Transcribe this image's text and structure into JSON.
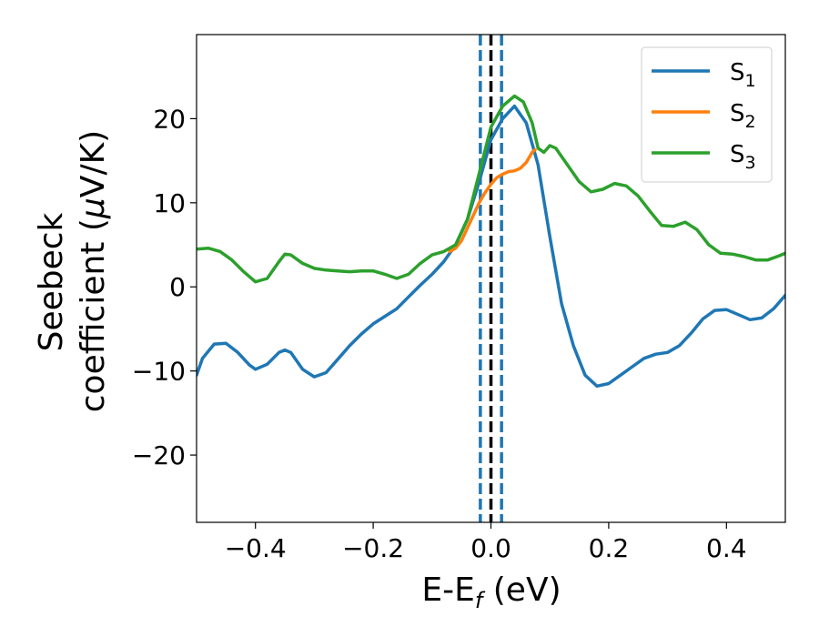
{
  "chart_data": {
    "type": "line",
    "title": "",
    "xlabel": {
      "main": "E-E",
      "sub": "f",
      "unit": " (eV)"
    },
    "ylabel": {
      "line1": "Seebeck",
      "line2": "coefficient  (",
      "mu": "μ",
      "unit": "V/K)"
    },
    "xlim": [
      -0.5,
      0.5
    ],
    "ylim": [
      -28,
      30
    ],
    "xticks": [
      -0.4,
      -0.2,
      0.0,
      0.2,
      0.4
    ],
    "xtick_labels": [
      "−0.4",
      "−0.2",
      "0.0",
      "0.2",
      "0.4"
    ],
    "yticks": [
      -20,
      -10,
      0,
      10,
      20
    ],
    "ytick_labels": [
      "−20",
      "−10",
      "0",
      "10",
      "20"
    ],
    "grid": false,
    "legend_position": "top-right",
    "vlines": [
      {
        "x": -0.018,
        "style": "dashed",
        "color": "#1f77b4"
      },
      {
        "x": 0.018,
        "style": "dashed",
        "color": "#1f77b4"
      },
      {
        "x": 0.0,
        "style": "dashed",
        "color": "#000000"
      }
    ],
    "series": [
      {
        "name": "S",
        "sub": "1",
        "color": "#1f77b4",
        "points": [
          [
            -0.5,
            -10.5
          ],
          [
            -0.49,
            -8.5
          ],
          [
            -0.47,
            -6.8
          ],
          [
            -0.45,
            -6.7
          ],
          [
            -0.43,
            -7.8
          ],
          [
            -0.41,
            -9.3
          ],
          [
            -0.4,
            -9.8
          ],
          [
            -0.38,
            -9.2
          ],
          [
            -0.36,
            -7.8
          ],
          [
            -0.35,
            -7.5
          ],
          [
            -0.34,
            -7.8
          ],
          [
            -0.32,
            -9.8
          ],
          [
            -0.3,
            -10.7
          ],
          [
            -0.28,
            -10.2
          ],
          [
            -0.26,
            -8.6
          ],
          [
            -0.24,
            -7.0
          ],
          [
            -0.22,
            -5.6
          ],
          [
            -0.2,
            -4.4
          ],
          [
            -0.18,
            -3.5
          ],
          [
            -0.16,
            -2.6
          ],
          [
            -0.14,
            -1.2
          ],
          [
            -0.12,
            0.2
          ],
          [
            -0.1,
            1.5
          ],
          [
            -0.08,
            3.0
          ],
          [
            -0.06,
            5.0
          ],
          [
            -0.04,
            8.0
          ],
          [
            -0.02,
            12.5
          ],
          [
            0.0,
            17.5
          ],
          [
            0.02,
            20.0
          ],
          [
            0.04,
            21.5
          ],
          [
            0.06,
            19.5
          ],
          [
            0.08,
            14.5
          ],
          [
            0.1,
            6.0
          ],
          [
            0.12,
            -2.0
          ],
          [
            0.14,
            -7.0
          ],
          [
            0.16,
            -10.5
          ],
          [
            0.18,
            -11.8
          ],
          [
            0.2,
            -11.5
          ],
          [
            0.22,
            -10.5
          ],
          [
            0.24,
            -9.5
          ],
          [
            0.26,
            -8.5
          ],
          [
            0.28,
            -8.0
          ],
          [
            0.3,
            -7.8
          ],
          [
            0.32,
            -7.0
          ],
          [
            0.34,
            -5.5
          ],
          [
            0.36,
            -3.8
          ],
          [
            0.38,
            -2.8
          ],
          [
            0.4,
            -2.7
          ],
          [
            0.42,
            -3.3
          ],
          [
            0.44,
            -3.9
          ],
          [
            0.46,
            -3.7
          ],
          [
            0.48,
            -2.6
          ],
          [
            0.5,
            -1.0
          ]
        ]
      },
      {
        "name": "S",
        "sub": "2",
        "color": "#ff7f0e",
        "points": [
          [
            -0.07,
            4.2
          ],
          [
            -0.06,
            4.6
          ],
          [
            -0.05,
            5.5
          ],
          [
            -0.04,
            7.0
          ],
          [
            -0.03,
            8.5
          ],
          [
            -0.02,
            10.0
          ],
          [
            -0.01,
            11.2
          ],
          [
            0.0,
            12.2
          ],
          [
            0.01,
            13.0
          ],
          [
            0.02,
            13.4
          ],
          [
            0.03,
            13.7
          ],
          [
            0.04,
            13.8
          ],
          [
            0.05,
            14.1
          ],
          [
            0.06,
            14.8
          ],
          [
            0.07,
            16.0
          ],
          [
            0.075,
            16.3
          ]
        ]
      },
      {
        "name": "S",
        "sub": "3",
        "color": "#2ca02c",
        "points": [
          [
            -0.5,
            4.5
          ],
          [
            -0.48,
            4.6
          ],
          [
            -0.46,
            4.2
          ],
          [
            -0.44,
            3.2
          ],
          [
            -0.42,
            1.8
          ],
          [
            -0.4,
            0.6
          ],
          [
            -0.38,
            1.0
          ],
          [
            -0.36,
            3.0
          ],
          [
            -0.35,
            3.9
          ],
          [
            -0.34,
            3.8
          ],
          [
            -0.32,
            2.8
          ],
          [
            -0.3,
            2.2
          ],
          [
            -0.28,
            2.0
          ],
          [
            -0.26,
            1.9
          ],
          [
            -0.24,
            1.8
          ],
          [
            -0.22,
            1.9
          ],
          [
            -0.2,
            1.9
          ],
          [
            -0.18,
            1.5
          ],
          [
            -0.16,
            1.0
          ],
          [
            -0.14,
            1.5
          ],
          [
            -0.12,
            2.8
          ],
          [
            -0.1,
            3.8
          ],
          [
            -0.08,
            4.2
          ],
          [
            -0.06,
            5.0
          ],
          [
            -0.04,
            8.0
          ],
          [
            -0.02,
            13.5
          ],
          [
            0.0,
            19.0
          ],
          [
            0.02,
            21.5
          ],
          [
            0.04,
            22.7
          ],
          [
            0.055,
            22.0
          ],
          [
            0.07,
            19.5
          ],
          [
            0.08,
            16.5
          ],
          [
            0.09,
            16.0
          ],
          [
            0.1,
            16.8
          ],
          [
            0.11,
            16.5
          ],
          [
            0.13,
            14.5
          ],
          [
            0.15,
            12.5
          ],
          [
            0.17,
            11.3
          ],
          [
            0.19,
            11.6
          ],
          [
            0.21,
            12.3
          ],
          [
            0.23,
            12.0
          ],
          [
            0.25,
            10.8
          ],
          [
            0.27,
            9.0
          ],
          [
            0.29,
            7.3
          ],
          [
            0.31,
            7.2
          ],
          [
            0.33,
            7.7
          ],
          [
            0.35,
            6.8
          ],
          [
            0.37,
            5.0
          ],
          [
            0.39,
            4.0
          ],
          [
            0.41,
            3.9
          ],
          [
            0.43,
            3.6
          ],
          [
            0.45,
            3.2
          ],
          [
            0.47,
            3.2
          ],
          [
            0.49,
            3.7
          ],
          [
            0.5,
            4.0
          ]
        ]
      }
    ]
  }
}
